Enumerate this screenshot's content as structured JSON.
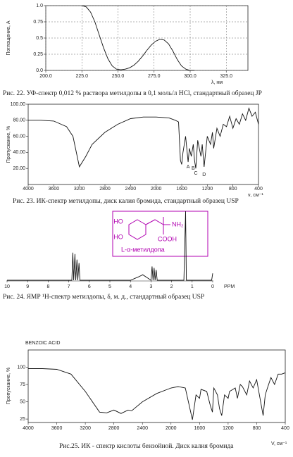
{
  "chart_data": [
    {
      "type": "line",
      "caption": "Рис. 22. УФ-спектр 0,012 % раствора метилдопы в 0,1 моль/л HCl, стандартный образец JP",
      "y_label": "Поглощение, A",
      "x_label": "λ, нм",
      "color": "#111",
      "grid": true,
      "xlim": [
        200,
        340
      ],
      "ylim": [
        0,
        1
      ],
      "xticks": [
        {
          "value": 200,
          "label": "200.0"
        },
        {
          "value": 225,
          "label": "225.0"
        },
        {
          "value": 250,
          "label": "250.0"
        },
        {
          "value": 275,
          "label": "275.0"
        },
        {
          "value": 300,
          "label": "300.0"
        },
        {
          "value": 325,
          "label": "325.0"
        }
      ],
      "yticks": [
        {
          "value": 0,
          "label": "0.0"
        },
        0.25,
        0.5,
        0.75,
        {
          "value": 1,
          "label": "1.0"
        }
      ],
      "x": [
        225,
        228,
        231,
        234,
        237,
        240,
        243,
        246,
        249,
        252,
        255,
        258,
        261,
        264,
        267,
        270,
        273,
        276,
        279,
        282,
        285,
        288,
        291,
        294,
        297,
        300,
        303
      ],
      "values": [
        1.0,
        0.98,
        0.9,
        0.75,
        0.55,
        0.35,
        0.18,
        0.07,
        0.02,
        0.01,
        0.02,
        0.04,
        0.08,
        0.14,
        0.22,
        0.31,
        0.39,
        0.45,
        0.48,
        0.47,
        0.41,
        0.3,
        0.17,
        0.07,
        0.02,
        0.0,
        0.0
      ]
    },
    {
      "type": "line",
      "caption": "Рис. 23. ИК-спектр метилдопы, диск калия бромида, стандартный образец USP",
      "y_label": "Пропускание, %",
      "x_label": "ν, см⁻¹",
      "color": "#111",
      "grid": false,
      "xlim": [
        4000,
        400
      ],
      "ylim": [
        0,
        100
      ],
      "xticks": [
        4000,
        3600,
        3200,
        2800,
        2400,
        2000,
        1600,
        1200,
        800,
        400
      ],
      "yticks": [
        {
          "value": 20,
          "label": "20.00"
        },
        {
          "value": 40,
          "label": "40.00"
        },
        {
          "value": 60,
          "label": "60.00"
        },
        {
          "value": 80,
          "label": "80.00"
        },
        {
          "value": 100,
          "label": "100.00"
        }
      ],
      "x": [
        4000,
        3800,
        3600,
        3400,
        3300,
        3200,
        3100,
        3000,
        2800,
        2600,
        2400,
        2200,
        2000,
        1800,
        1700,
        1650,
        1620,
        1600,
        1580,
        1540,
        1500,
        1480,
        1450,
        1420,
        1400,
        1380,
        1350,
        1300,
        1280,
        1250,
        1220,
        1200,
        1150,
        1120,
        1100,
        1050,
        1000,
        950,
        900,
        850,
        800,
        750,
        700,
        650,
        600,
        550,
        500,
        450,
        400
      ],
      "values": [
        80,
        80,
        79,
        72,
        60,
        22,
        35,
        50,
        65,
        75,
        82,
        84,
        84,
        83,
        80,
        78,
        30,
        25,
        40,
        60,
        28,
        45,
        35,
        50,
        30,
        20,
        55,
        35,
        50,
        22,
        45,
        60,
        50,
        65,
        45,
        70,
        60,
        75,
        72,
        85,
        70,
        82,
        75,
        88,
        80,
        95,
        85,
        90,
        75
      ],
      "annotations": [
        {
          "text": "A",
          "x": 1500,
          "y": 22
        },
        {
          "text": "B",
          "x": 1420,
          "y": 20
        },
        {
          "text": "C",
          "x": 1380,
          "y": 14
        },
        {
          "text": "D",
          "x": 1250,
          "y": 12
        }
      ]
    },
    {
      "type": "line",
      "caption": "Рис. 24. ЯМР ¹H-спектр метилдопы, δ, м. д., стандартный образец USP",
      "x_label": "PPM",
      "color": "#111",
      "grid": false,
      "xlim": [
        10,
        0
      ],
      "ylim": [
        0,
        100
      ],
      "xticks": [
        10,
        9,
        8,
        7,
        6,
        5,
        4,
        3,
        2,
        1,
        0
      ],
      "x": [
        10,
        7.0,
        6.85,
        6.8,
        6.76,
        6.7,
        6.66,
        6.6,
        6.56,
        6.5,
        6.46,
        6.0,
        4.0,
        3.6,
        3.4,
        3.2,
        3.0,
        2.95,
        2.9,
        2.85,
        2.8,
        2.75,
        2.7,
        1.4,
        1.32,
        1.28,
        0.05,
        0
      ],
      "values": [
        0,
        0,
        0,
        40,
        0,
        38,
        0,
        30,
        0,
        25,
        0,
        0,
        0,
        5,
        8,
        4,
        0,
        20,
        0,
        18,
        0,
        15,
        0,
        0,
        100,
        0,
        0,
        10
      ]
    },
    {
      "type": "line",
      "title": "BENZOIC ACID",
      "caption": "Рис.25.  ИК - спектр кислоты бензойной.   Диск калия бромида",
      "y_label": "Пропускание, %",
      "x_label": "V, см⁻¹",
      "color": "#111",
      "grid": false,
      "xlim": [
        4000,
        400
      ],
      "ylim": [
        20,
        125
      ],
      "xticks": [
        4000,
        3600,
        3200,
        2800,
        2400,
        2000,
        1600,
        1200,
        800,
        400
      ],
      "yticks": [
        25,
        50,
        75,
        100
      ],
      "x": [
        4000,
        3800,
        3600,
        3400,
        3200,
        3000,
        2900,
        2800,
        2700,
        2600,
        2550,
        2400,
        2200,
        2000,
        1900,
        1800,
        1700,
        1650,
        1600,
        1580,
        1500,
        1450,
        1420,
        1400,
        1350,
        1320,
        1290,
        1250,
        1200,
        1180,
        1100,
        1070,
        1030,
        1000,
        940,
        900,
        850,
        800,
        710,
        680,
        650,
        600,
        550,
        500,
        450,
        400
      ],
      "values": [
        98,
        98,
        97,
        90,
        65,
        35,
        34,
        38,
        33,
        38,
        37,
        50,
        62,
        70,
        72,
        70,
        24,
        60,
        55,
        68,
        65,
        45,
        35,
        70,
        60,
        40,
        30,
        60,
        55,
        65,
        70,
        55,
        75,
        72,
        60,
        80,
        70,
        82,
        30,
        60,
        70,
        85,
        75,
        90,
        90,
        92
      ]
    }
  ],
  "structure": {
    "ho_top": "HO",
    "ho_bottom": "HO",
    "amine": "NH₂",
    "acid": "COOH",
    "name": "L-α-метилдопа"
  }
}
